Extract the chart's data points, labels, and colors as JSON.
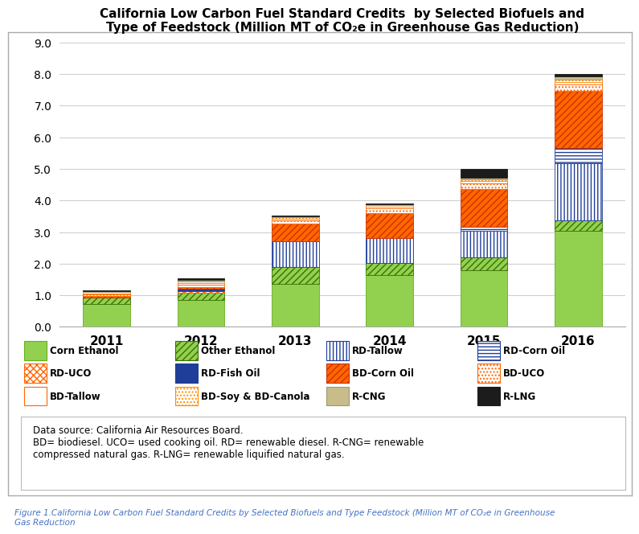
{
  "years": [
    "2011",
    "2012",
    "2013",
    "2014",
    "2015",
    "2016"
  ],
  "title_line1": "California Low Carbon Fuel Standard Credits  by Selected Biofuels and",
  "title_line2": "Type of Feedstock (Million MT of CO₂e in Greenhouse Gas Reduction)",
  "ylim": [
    0.0,
    9.0
  ],
  "yticks": [
    0.0,
    1.0,
    2.0,
    3.0,
    4.0,
    5.0,
    6.0,
    7.0,
    8.0,
    9.0
  ],
  "segments": [
    {
      "name": "Corn Ethanol",
      "fc": "#92D050",
      "hatch": "",
      "ec": "#6AAE20",
      "values": [
        0.72,
        0.85,
        1.35,
        1.65,
        1.8,
        3.05
      ]
    },
    {
      "name": "Other Ethanol",
      "fc": "#92D050",
      "hatch": "////",
      "ec": "#3A7000",
      "values": [
        0.2,
        0.22,
        0.55,
        0.38,
        0.4,
        0.32
      ]
    },
    {
      "name": "RD-Tallow",
      "fc": "#FFFFFF",
      "hatch": "||||",
      "ec": "#1F3E99",
      "values": [
        0.0,
        0.0,
        0.82,
        0.78,
        0.85,
        1.8
      ]
    },
    {
      "name": "RD-Corn Oil",
      "fc": "#FFFFFF",
      "hatch": "----",
      "ec": "#1F3E99",
      "values": [
        0.0,
        0.0,
        0.0,
        0.0,
        0.12,
        0.5
      ]
    },
    {
      "name": "RD-UCO",
      "fc": "#FFFFFF",
      "hatch": "xxxx",
      "ec": "#FF6600",
      "values": [
        0.0,
        0.05,
        0.0,
        0.0,
        0.0,
        0.0
      ]
    },
    {
      "name": "RD-Fish Oil",
      "fc": "#1F3E99",
      "hatch": "",
      "ec": "#1F3E99",
      "values": [
        0.0,
        0.08,
        0.0,
        0.0,
        0.0,
        0.0
      ]
    },
    {
      "name": "BD-Corn Oil",
      "fc": "#FF6600",
      "hatch": "////",
      "ec": "#CC3300",
      "values": [
        0.05,
        0.06,
        0.55,
        0.8,
        1.2,
        1.8
      ]
    },
    {
      "name": "BD-UCO",
      "fc": "#FFFFFF",
      "hatch": "....",
      "ec": "#FF6600",
      "values": [
        0.05,
        0.08,
        0.1,
        0.14,
        0.18,
        0.2
      ]
    },
    {
      "name": "BD-Tallow",
      "fc": "#FFFFFF",
      "hatch": "",
      "ec": "#FF6600",
      "values": [
        0.04,
        0.04,
        0.05,
        0.05,
        0.06,
        0.08
      ]
    },
    {
      "name": "BD-Soy & BD-Canola",
      "fc": "#FFFFFF",
      "hatch": "....",
      "ec": "#FF8C00",
      "values": [
        0.04,
        0.05,
        0.05,
        0.05,
        0.06,
        0.08
      ]
    },
    {
      "name": "R-CNG",
      "fc": "#C8BC8A",
      "hatch": "",
      "ec": "#A09870",
      "values": [
        0.04,
        0.05,
        0.02,
        0.03,
        0.06,
        0.1
      ]
    },
    {
      "name": "R-LNG",
      "fc": "#1C1C1C",
      "hatch": "",
      "ec": "#1C1C1C",
      "values": [
        0.02,
        0.05,
        0.02,
        0.03,
        0.27,
        0.07
      ]
    }
  ],
  "legend_items": [
    {
      "name": "Corn Ethanol",
      "fc": "#92D050",
      "hatch": "",
      "ec": "#6AAE20"
    },
    {
      "name": "Other Ethanol",
      "fc": "#92D050",
      "hatch": "////",
      "ec": "#3A7000"
    },
    {
      "name": "RD-Tallow",
      "fc": "#FFFFFF",
      "hatch": "||||",
      "ec": "#1F3E99"
    },
    {
      "name": "RD-Corn Oil",
      "fc": "#FFFFFF",
      "hatch": "----",
      "ec": "#1F3E99"
    },
    {
      "name": "RD-UCO",
      "fc": "#FFFFFF",
      "hatch": "xxxx",
      "ec": "#FF6600"
    },
    {
      "name": "RD-Fish Oil",
      "fc": "#1F3E99",
      "hatch": "",
      "ec": "#1F3E99"
    },
    {
      "name": "BD-Corn Oil",
      "fc": "#FF6600",
      "hatch": "////",
      "ec": "#CC3300"
    },
    {
      "name": "BD-UCO",
      "fc": "#FFFFFF",
      "hatch": "....",
      "ec": "#FF6600"
    },
    {
      "name": "BD-Tallow",
      "fc": "#FFFFFF",
      "hatch": "",
      "ec": "#FF6600"
    },
    {
      "name": "BD-Soy & BD-Canola",
      "fc": "#FFFFFF",
      "hatch": "....",
      "ec": "#FF8C00"
    },
    {
      "name": "R-CNG",
      "fc": "#C8BC8A",
      "hatch": "",
      "ec": "#A09870"
    },
    {
      "name": "R-LNG",
      "fc": "#1C1C1C",
      "hatch": "",
      "ec": "#1C1C1C"
    }
  ],
  "datasource_text": "Data source: California Air Resources Board.\nBD= biodiesel. UCO= used cooking oil. RD= renewable diesel. R-CNG= renewable\ncompressed natural gas. R-LNG= renewable liquified natural gas.",
  "figure_caption": "Figure 1.California Low Carbon Fuel Standard Credits by Selected Biofuels and Type Feedstock (Million MT of CO₂e in Greenhouse\nGas Reduction"
}
